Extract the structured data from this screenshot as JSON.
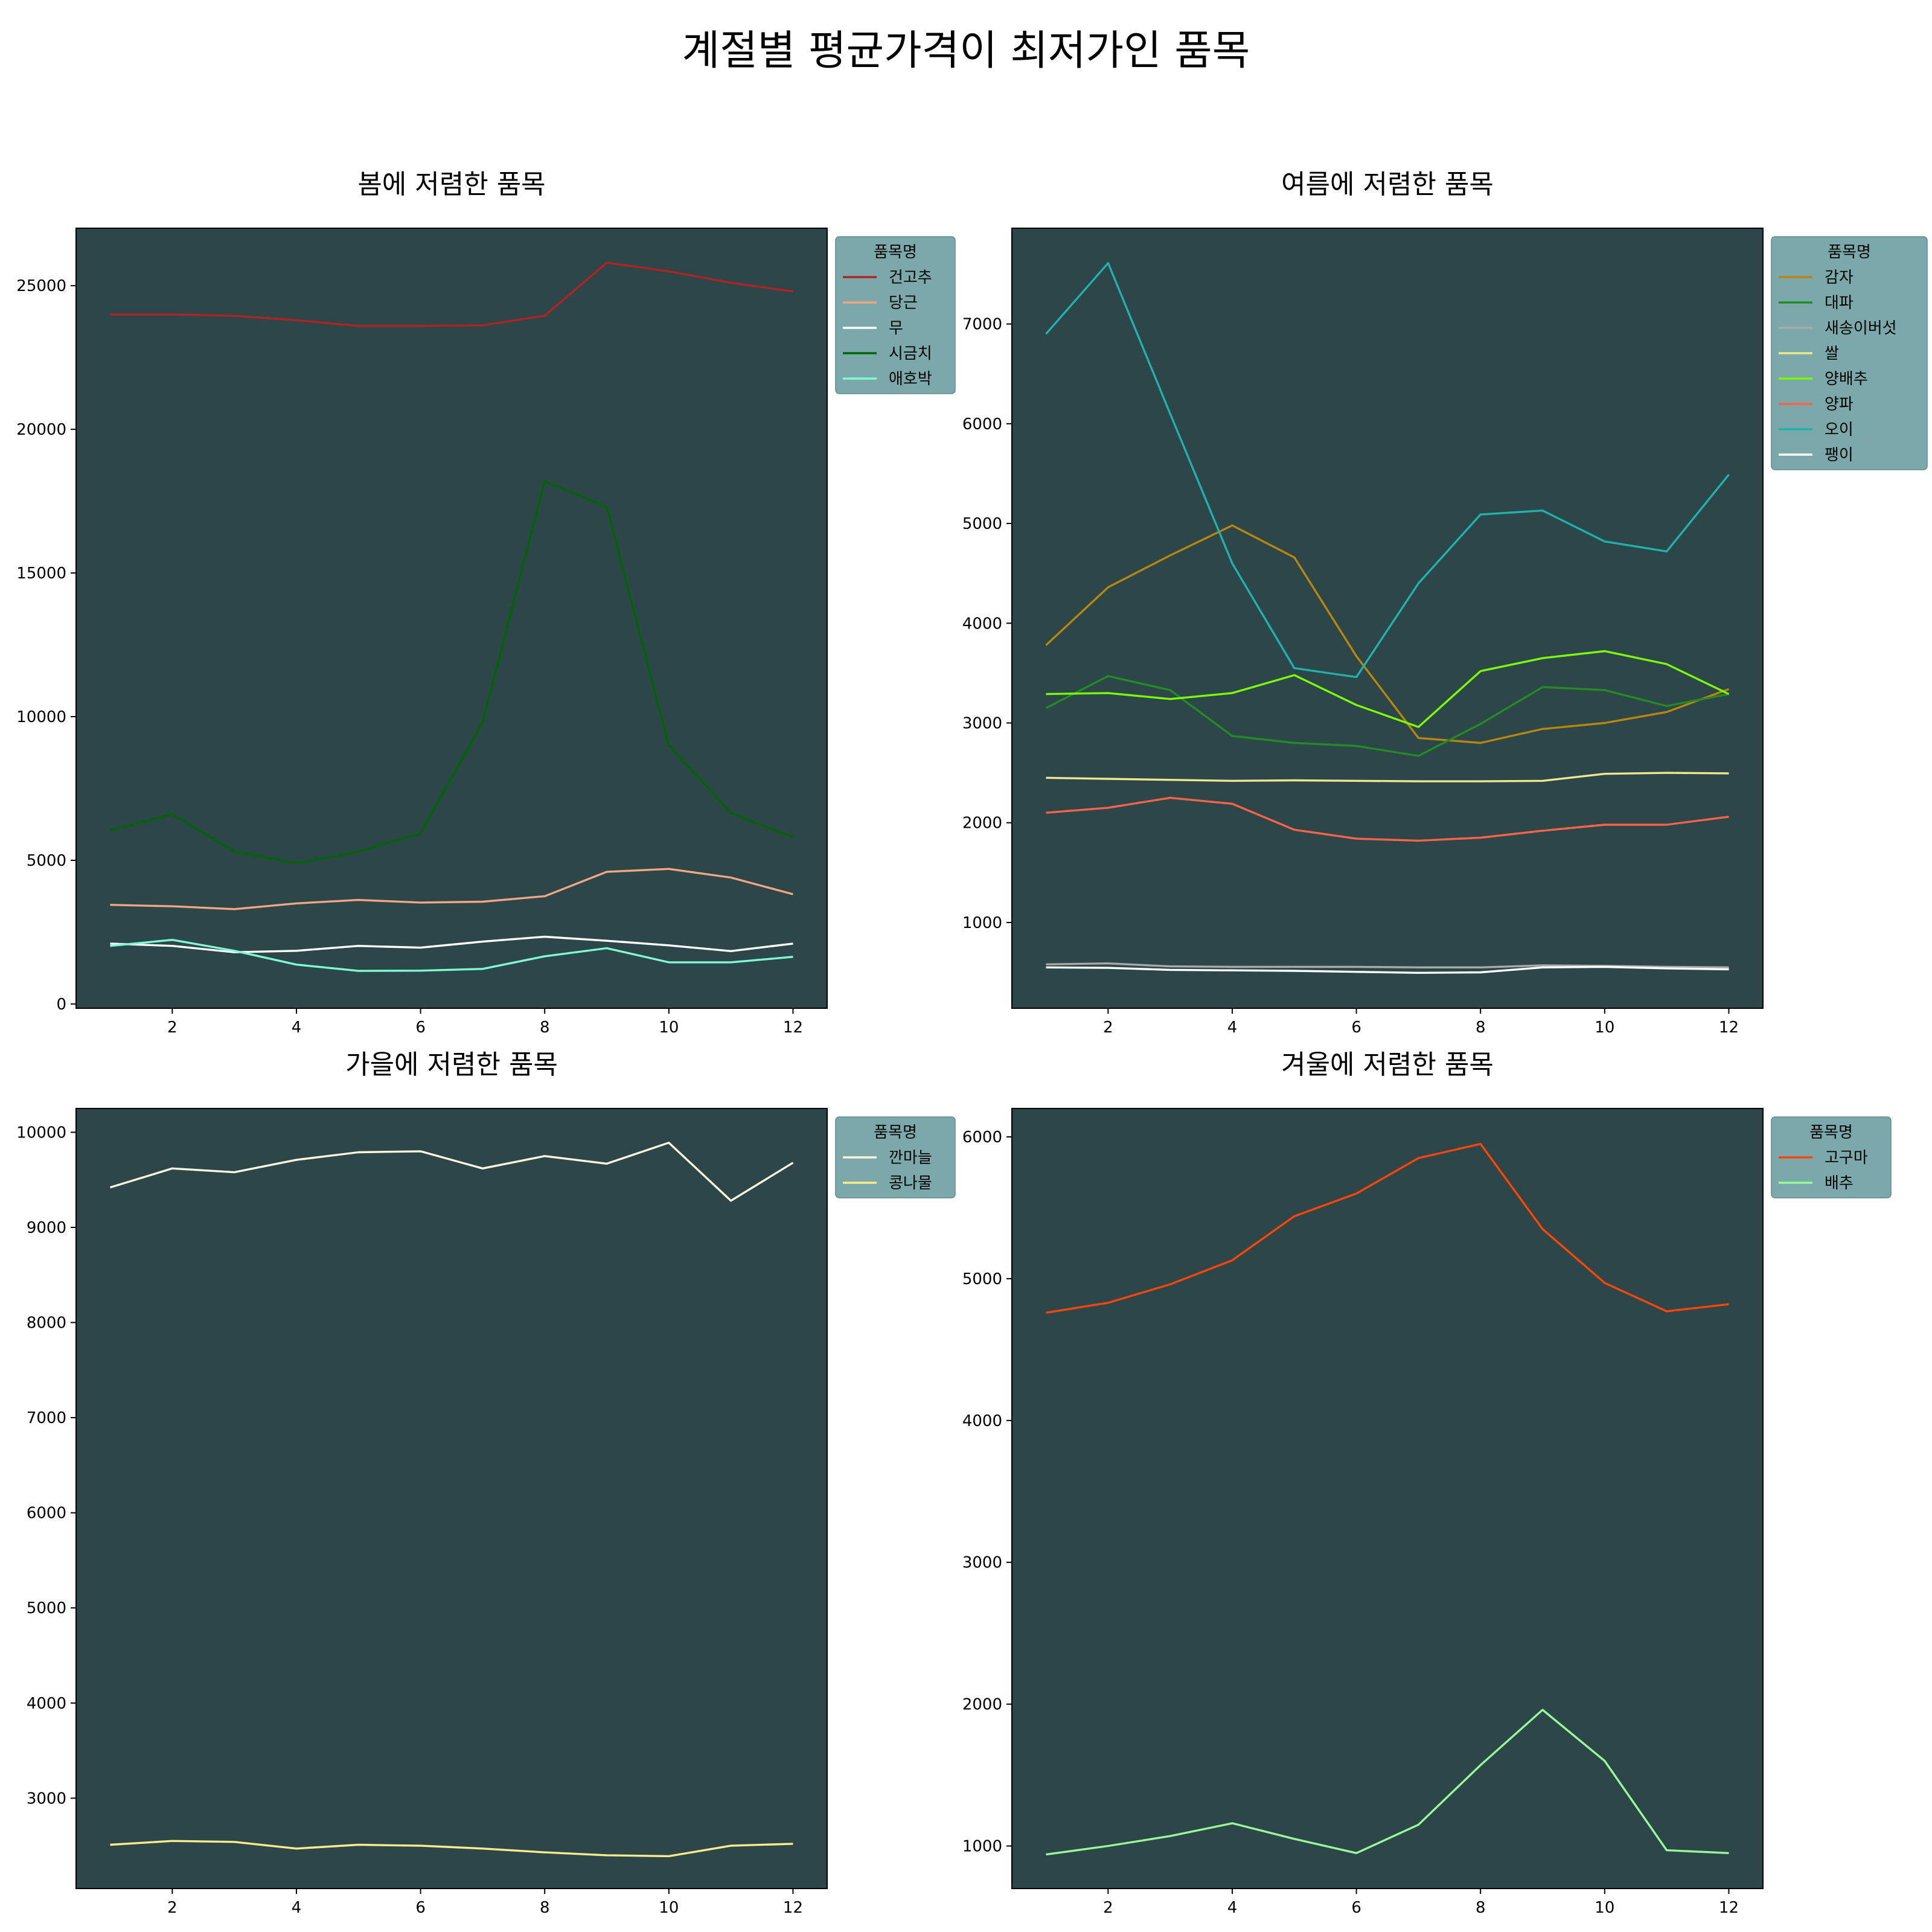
{
  "suptitle": "계절별 평균가격이 최저가인 품목",
  "style": {
    "axes_facecolor": "#2c4649",
    "legend_facecolor": "#7ba9ab"
  },
  "chart_data": [
    {
      "type": "line",
      "title": "봄에 저렴한 품목",
      "legend_title": "품목명",
      "legend_placement": "outside-right-top",
      "xlim": [
        0.45,
        12.55
      ],
      "ylim": [
        -150,
        27000
      ],
      "xticks": [
        2,
        4,
        6,
        8,
        10,
        12
      ],
      "yticks": [
        0,
        5000,
        10000,
        15000,
        20000,
        25000
      ],
      "x": [
        1,
        2,
        3,
        4,
        5,
        6,
        7,
        8,
        9,
        10,
        11,
        12
      ],
      "series": [
        {
          "name": "건고추",
          "color": "#b22222",
          "values": [
            24000,
            24000,
            23950,
            23800,
            23600,
            23600,
            23620,
            23950,
            25800,
            25500,
            25100,
            24800
          ]
        },
        {
          "name": "당근",
          "color": "#f4a582",
          "values": [
            3450,
            3400,
            3300,
            3500,
            3620,
            3530,
            3560,
            3750,
            4600,
            4700,
            4400,
            3820
          ]
        },
        {
          "name": "무",
          "color": "#ffffff",
          "values": [
            2100,
            2020,
            1800,
            1850,
            2020,
            1960,
            2170,
            2340,
            2200,
            2040,
            1840,
            2100
          ]
        },
        {
          "name": "시금치",
          "color": "#006400",
          "values": [
            6050,
            6600,
            5300,
            4900,
            5300,
            5950,
            9800,
            18200,
            17300,
            9000,
            6650,
            5800
          ]
        },
        {
          "name": "애호박",
          "color": "#7fffd4",
          "values": [
            2020,
            2230,
            1850,
            1370,
            1150,
            1160,
            1220,
            1660,
            1940,
            1450,
            1450,
            1640
          ]
        }
      ]
    },
    {
      "type": "line",
      "title": "여름에 저렴한 품목",
      "legend_title": "품목명",
      "legend_placement": "outside-right-top",
      "xlim": [
        0.45,
        12.55
      ],
      "ylim": [
        140,
        7960
      ],
      "xticks": [
        2,
        4,
        6,
        8,
        10,
        12
      ],
      "yticks": [
        1000,
        2000,
        3000,
        4000,
        5000,
        6000,
        7000
      ],
      "x": [
        1,
        2,
        3,
        4,
        5,
        6,
        7,
        8,
        9,
        10,
        11,
        12
      ],
      "series": [
        {
          "name": "감자",
          "color": "#b8860b",
          "values": [
            3780,
            4360,
            4680,
            4980,
            4660,
            3670,
            2850,
            2800,
            2940,
            3000,
            3110,
            3340
          ]
        },
        {
          "name": "대파",
          "color": "#228b22",
          "values": [
            3150,
            3470,
            3330,
            2870,
            2800,
            2770,
            2670,
            2990,
            3360,
            3330,
            3170,
            3290
          ]
        },
        {
          "name": "새송이버섯",
          "color": "#a9a9a9",
          "values": [
            580,
            590,
            560,
            555,
            555,
            555,
            550,
            550,
            570,
            565,
            555,
            550
          ]
        },
        {
          "name": "쌀",
          "color": "#f0e68c",
          "values": [
            2450,
            2440,
            2430,
            2420,
            2425,
            2420,
            2415,
            2415,
            2420,
            2490,
            2500,
            2495
          ]
        },
        {
          "name": "양배추",
          "color": "#7cfc00",
          "values": [
            3290,
            3300,
            3240,
            3300,
            3480,
            3180,
            2960,
            3520,
            3650,
            3720,
            3590,
            3290
          ]
        },
        {
          "name": "양파",
          "color": "#ff6347",
          "values": [
            2100,
            2150,
            2250,
            2190,
            1930,
            1840,
            1820,
            1850,
            1920,
            1980,
            1980,
            2060
          ]
        },
        {
          "name": "오이",
          "color": "#20b2aa",
          "values": [
            6900,
            7610,
            6100,
            4600,
            3550,
            3460,
            4400,
            5090,
            5130,
            4820,
            4720,
            5490
          ]
        },
        {
          "name": "팽이",
          "color": "#ffffff",
          "values": [
            550,
            545,
            525,
            520,
            515,
            505,
            495,
            500,
            550,
            555,
            540,
            530
          ]
        }
      ]
    },
    {
      "type": "line",
      "title": "가을에 저렴한 품목",
      "legend_title": "품목명",
      "legend_placement": "outside-right-top",
      "xlim": [
        0.45,
        12.55
      ],
      "ylim": [
        2050,
        10250
      ],
      "xticks": [
        2,
        4,
        6,
        8,
        10,
        12
      ],
      "yticks": [
        3000,
        4000,
        5000,
        6000,
        7000,
        8000,
        9000,
        10000
      ],
      "x": [
        1,
        2,
        3,
        4,
        5,
        6,
        7,
        8,
        9,
        10,
        11,
        12
      ],
      "series": [
        {
          "name": "깐마늘",
          "color": "#fff8dc",
          "values": [
            9420,
            9620,
            9580,
            9710,
            9790,
            9800,
            9620,
            9750,
            9670,
            9890,
            9280,
            9680
          ]
        },
        {
          "name": "콩나물",
          "color": "#ffeb8a",
          "values": [
            2510,
            2550,
            2540,
            2470,
            2510,
            2500,
            2470,
            2430,
            2400,
            2390,
            2500,
            2520
          ]
        }
      ]
    },
    {
      "type": "line",
      "title": "겨울에 저렴한 품목",
      "legend_title": "품목명",
      "legend_placement": "outside-right-top",
      "xlim": [
        0.45,
        12.55
      ],
      "ylim": [
        700,
        6200
      ],
      "xticks": [
        2,
        4,
        6,
        8,
        10,
        12
      ],
      "yticks": [
        1000,
        2000,
        3000,
        4000,
        5000,
        6000
      ],
      "x": [
        1,
        2,
        3,
        4,
        5,
        6,
        7,
        8,
        9,
        10,
        11,
        12
      ],
      "series": [
        {
          "name": "고구마",
          "color": "#ff4500",
          "values": [
            4760,
            4830,
            4960,
            5130,
            5440,
            5600,
            5850,
            5950,
            5350,
            4970,
            4770,
            4820
          ]
        },
        {
          "name": "배추",
          "color": "#98fb98",
          "values": [
            940,
            1000,
            1070,
            1160,
            1050,
            950,
            1150,
            1570,
            1960,
            1600,
            970,
            950
          ]
        }
      ]
    }
  ]
}
